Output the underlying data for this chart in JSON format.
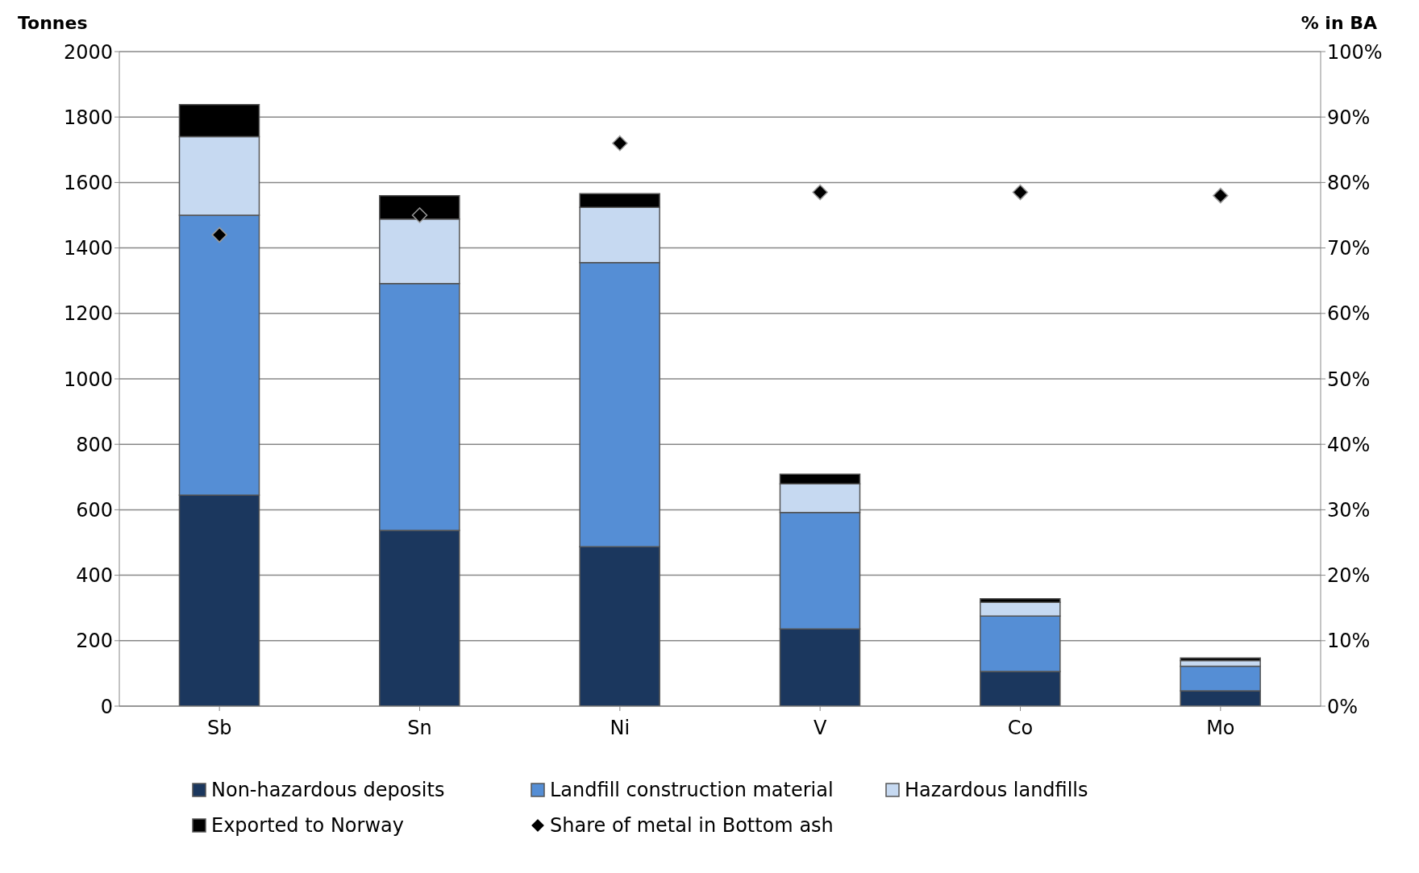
{
  "chart_data": {
    "type": "bar",
    "stacked": true,
    "ylabel": "Tonnes",
    "y2label": "% in BA",
    "categories": [
      "Sb",
      "Sn",
      "Ni",
      "V",
      "Co",
      "Mo"
    ],
    "series": [
      {
        "name": "Non-hazardous deposits",
        "color": "#1b375e",
        "values": [
          645,
          537,
          487,
          236,
          106,
          47
        ]
      },
      {
        "name": "Landfill construction material",
        "color": "#558ed5",
        "values": [
          855,
          754,
          868,
          356,
          169,
          75
        ]
      },
      {
        "name": "Hazardous landfills",
        "color": "#c6d9f1",
        "values": [
          240,
          197,
          169,
          87,
          42,
          17
        ]
      },
      {
        "name": "Exported to Norway",
        "color": "#000000",
        "values": [
          98,
          72,
          42,
          30,
          11,
          8
        ]
      },
      {
        "name": "Share of metal in Bottom ash",
        "type": "scatter",
        "axis": "y2",
        "marker": "diamond",
        "color": "#000000",
        "values": [
          72,
          75,
          86,
          78.5,
          78.5,
          78
        ]
      }
    ],
    "ylim": [
      0,
      2000
    ],
    "yticks": [
      0,
      200,
      400,
      600,
      800,
      1000,
      1200,
      1400,
      1600,
      1800,
      2000
    ],
    "y2lim": [
      0,
      100
    ],
    "y2ticks": [
      {
        "value": 0,
        "label": "0%"
      },
      {
        "value": 10,
        "label": "10%"
      },
      {
        "value": 20,
        "label": "20%"
      },
      {
        "value": 30,
        "label": "30%"
      },
      {
        "value": 40,
        "label": "40%"
      },
      {
        "value": 50,
        "label": "50%"
      },
      {
        "value": 60,
        "label": "60%"
      },
      {
        "value": 70,
        "label": "70%"
      },
      {
        "value": 80,
        "label": "80%"
      },
      {
        "value": 90,
        "label": "90%"
      },
      {
        "value": 100,
        "label": "100%"
      }
    ],
    "grid": "y",
    "legend": "bottom"
  }
}
